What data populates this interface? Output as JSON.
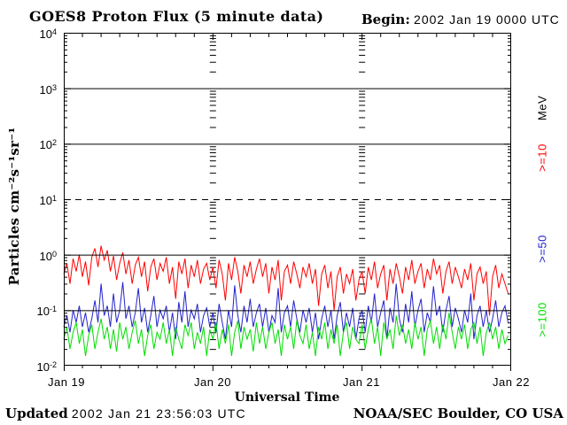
{
  "header": {
    "title": "GOES8 Proton Flux (5 minute data)",
    "begin_label": "Begin:",
    "begin_value": "2002 Jan 19 0000 UTC"
  },
  "footer": {
    "updated_label": "Updated",
    "updated_value": "2002 Jan 21 23:56:03 UTC",
    "credit": "NOAA/SEC Boulder, CO USA"
  },
  "chart_data": {
    "type": "line",
    "title": "GOES8 Proton Flux (5 minute data)",
    "xlabel": "Universal Time",
    "ylabel": "Particles cm⁻²s⁻¹sr⁻¹",
    "y_scale": "log",
    "ylim": [
      0.01,
      10000
    ],
    "y_tick_exponents": [
      4,
      3,
      2,
      1,
      0,
      -1,
      -2
    ],
    "x_tick_labels": [
      "Jan 19",
      "Jan 20",
      "Jan 21",
      "Jan 22"
    ],
    "x_range_hours": [
      0,
      72
    ],
    "sample_interval_hours": 0.5,
    "right_axis_unit": "MeV",
    "grid": {
      "solid_lines_at": [
        1000,
        100,
        1,
        0.1
      ],
      "dashed_line_at": 10,
      "day_tick_columns_hours": [
        24,
        48
      ],
      "x_minor_tick_hours": 3
    },
    "colors": {
      "axis": "#000000",
      "background": "#ffffff"
    },
    "series": [
      {
        "name": ">=10",
        "color": "#ff0000",
        "values": [
          0.45,
          0.7,
          0.3,
          0.85,
          0.5,
          1.0,
          0.4,
          0.75,
          0.28,
          0.9,
          1.3,
          0.6,
          1.45,
          0.8,
          1.2,
          0.5,
          0.95,
          0.35,
          0.7,
          1.1,
          0.45,
          0.8,
          0.3,
          0.65,
          0.9,
          0.4,
          0.75,
          0.22,
          0.6,
          0.85,
          0.35,
          0.7,
          0.5,
          0.9,
          0.3,
          0.6,
          0.16,
          0.75,
          0.45,
          0.85,
          0.25,
          0.65,
          0.4,
          0.8,
          0.3,
          0.55,
          0.7,
          0.35,
          0.6,
          0.25,
          0.8,
          0.45,
          0.15,
          0.7,
          0.35,
          0.9,
          0.5,
          0.2,
          0.65,
          0.4,
          0.75,
          0.3,
          0.55,
          0.85,
          0.4,
          0.7,
          0.2,
          0.6,
          0.35,
          0.8,
          0.15,
          0.5,
          0.65,
          0.3,
          0.75,
          0.45,
          0.25,
          0.6,
          0.4,
          0.7,
          0.3,
          0.55,
          0.12,
          0.45,
          0.65,
          0.25,
          0.5,
          0.1,
          0.4,
          0.6,
          0.2,
          0.45,
          0.3,
          0.55,
          0.15,
          0.35,
          0.5,
          0.2,
          0.6,
          0.35,
          0.75,
          0.25,
          0.45,
          0.65,
          0.15,
          0.55,
          0.3,
          0.7,
          0.4,
          0.2,
          0.6,
          0.35,
          0.8,
          0.3,
          0.5,
          0.7,
          0.25,
          0.55,
          0.35,
          0.85,
          0.45,
          0.65,
          0.2,
          0.5,
          0.75,
          0.3,
          0.6,
          0.4,
          0.25,
          0.55,
          0.35,
          0.7,
          0.15,
          0.45,
          0.6,
          0.3,
          0.5,
          0.08,
          0.4,
          0.65,
          0.25,
          0.45,
          0.3,
          0.2
        ]
      },
      {
        "name": ">=50",
        "color": "#2222cc",
        "values": [
          0.05,
          0.08,
          0.04,
          0.1,
          0.06,
          0.12,
          0.05,
          0.09,
          0.04,
          0.07,
          0.15,
          0.06,
          0.3,
          0.08,
          0.12,
          0.05,
          0.2,
          0.06,
          0.1,
          0.32,
          0.07,
          0.12,
          0.05,
          0.09,
          0.25,
          0.06,
          0.11,
          0.04,
          0.08,
          0.18,
          0.05,
          0.1,
          0.07,
          0.12,
          0.04,
          0.09,
          0.03,
          0.14,
          0.06,
          0.22,
          0.05,
          0.1,
          0.07,
          0.13,
          0.04,
          0.08,
          0.11,
          0.05,
          0.09,
          0.04,
          0.13,
          0.06,
          0.03,
          0.1,
          0.05,
          0.28,
          0.08,
          0.04,
          0.12,
          0.06,
          0.16,
          0.05,
          0.09,
          0.13,
          0.05,
          0.11,
          0.04,
          0.08,
          0.06,
          0.25,
          0.04,
          0.09,
          0.12,
          0.05,
          0.15,
          0.07,
          0.04,
          0.1,
          0.06,
          0.11,
          0.04,
          0.09,
          0.03,
          0.07,
          0.12,
          0.05,
          0.1,
          0.03,
          0.08,
          0.14,
          0.04,
          0.09,
          0.05,
          0.11,
          0.03,
          0.07,
          0.1,
          0.04,
          0.12,
          0.06,
          0.2,
          0.05,
          0.09,
          0.15,
          0.03,
          0.11,
          0.06,
          0.3,
          0.07,
          0.04,
          0.13,
          0.06,
          0.22,
          0.05,
          0.1,
          0.16,
          0.04,
          0.09,
          0.06,
          0.27,
          0.08,
          0.12,
          0.04,
          0.1,
          0.18,
          0.05,
          0.11,
          0.07,
          0.04,
          0.1,
          0.06,
          0.2,
          0.03,
          0.08,
          0.12,
          0.05,
          0.1,
          0.04,
          0.07,
          0.15,
          0.05,
          0.09,
          0.12,
          0.06
        ]
      },
      {
        "name": ">=100",
        "color": "#00dd00",
        "values": [
          0.03,
          0.05,
          0.02,
          0.04,
          0.06,
          0.025,
          0.045,
          0.015,
          0.035,
          0.055,
          0.02,
          0.04,
          0.07,
          0.03,
          0.05,
          0.02,
          0.045,
          0.018,
          0.06,
          0.03,
          0.05,
          0.02,
          0.04,
          0.065,
          0.025,
          0.045,
          0.015,
          0.035,
          0.055,
          0.02,
          0.04,
          0.03,
          0.06,
          0.025,
          0.045,
          0.015,
          0.05,
          0.03,
          0.02,
          0.055,
          0.035,
          0.06,
          0.02,
          0.04,
          0.025,
          0.05,
          0.015,
          0.045,
          0.03,
          0.06,
          0.02,
          0.045,
          0.025,
          0.055,
          0.015,
          0.04,
          0.065,
          0.02,
          0.05,
          0.03,
          0.045,
          0.018,
          0.06,
          0.025,
          0.05,
          0.02,
          0.04,
          0.06,
          0.025,
          0.045,
          0.015,
          0.055,
          0.03,
          0.05,
          0.02,
          0.065,
          0.035,
          0.025,
          0.055,
          0.02,
          0.04,
          0.015,
          0.05,
          0.03,
          0.06,
          0.02,
          0.045,
          0.025,
          0.055,
          0.015,
          0.04,
          0.06,
          0.02,
          0.05,
          0.03,
          0.025,
          0.055,
          0.02,
          0.045,
          0.07,
          0.025,
          0.05,
          0.015,
          0.06,
          0.03,
          0.045,
          0.02,
          0.08,
          0.035,
          0.055,
          0.025,
          0.045,
          0.02,
          0.06,
          0.03,
          0.05,
          0.015,
          0.045,
          0.065,
          0.025,
          0.05,
          0.02,
          0.055,
          0.03,
          0.09,
          0.04,
          0.02,
          0.05,
          0.03,
          0.055,
          0.02,
          0.045,
          0.06,
          0.025,
          0.05,
          0.015,
          0.04,
          0.06,
          0.03,
          0.05,
          0.02,
          0.045,
          0.025,
          0.035
        ]
      }
    ]
  }
}
